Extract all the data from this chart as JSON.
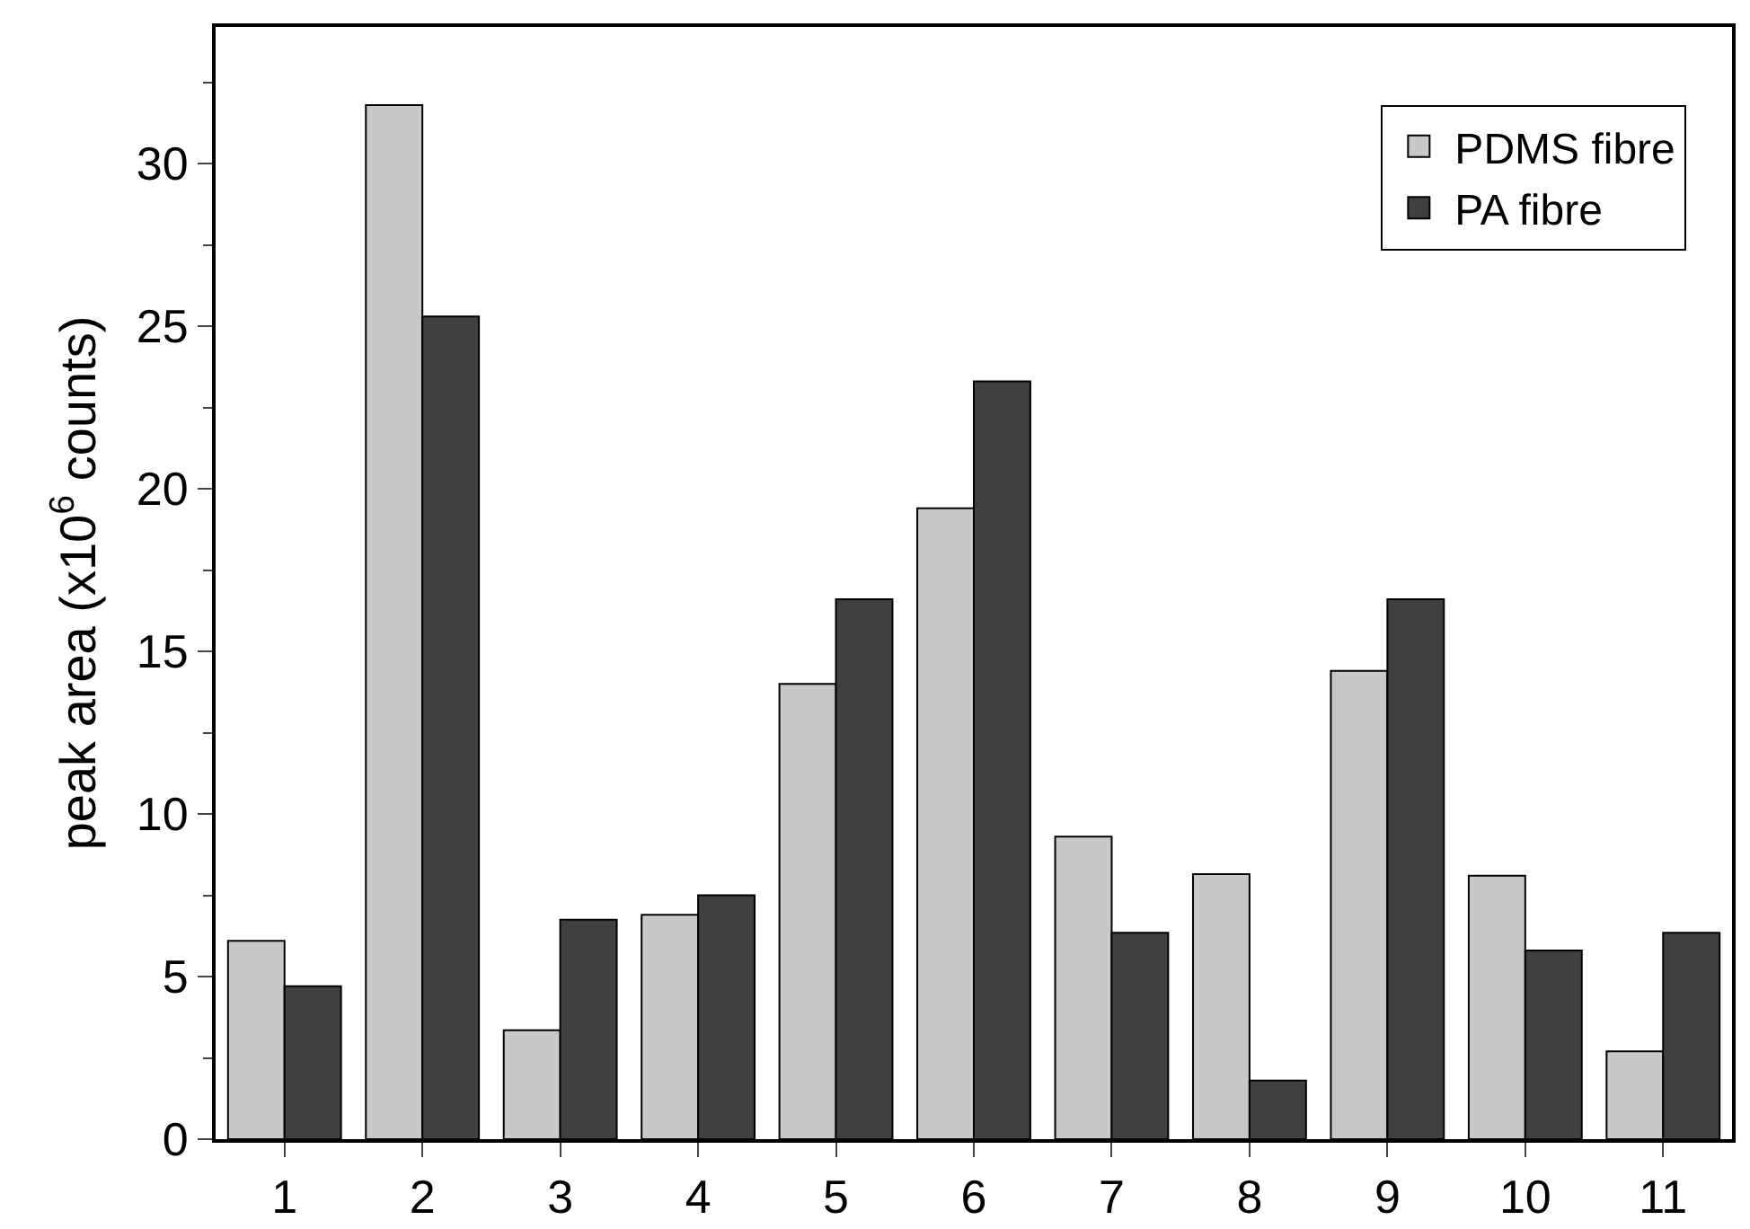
{
  "chart_data": {
    "type": "bar",
    "ylabel": "peak area (x10$^{6}$ counts)",
    "categories": [
      "1",
      "2",
      "3",
      "4",
      "5",
      "6",
      "7",
      "8",
      "9",
      "10",
      "11"
    ],
    "series": [
      {
        "name": "PDMS fibre",
        "color": "#c8c8c8",
        "values": [
          6.1,
          31.8,
          3.35,
          6.9,
          14.0,
          19.4,
          9.3,
          8.15,
          14.4,
          8.1,
          2.7
        ]
      },
      {
        "name": "PA fibre",
        "color": "#404040",
        "values": [
          4.7,
          25.3,
          6.75,
          7.5,
          16.6,
          23.3,
          6.35,
          1.8,
          16.6,
          5.8,
          6.35
        ]
      }
    ],
    "ylim": [
      0,
      34.2
    ],
    "yticks": [
      0,
      5,
      10,
      15,
      20,
      25,
      30
    ],
    "legend": "top right"
  }
}
